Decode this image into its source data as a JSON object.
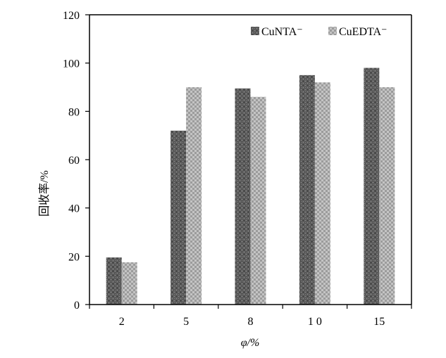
{
  "chart_data": {
    "type": "bar",
    "categories": [
      "2",
      "5",
      "8",
      "1 0",
      "15"
    ],
    "series": [
      {
        "name": "CuNTA⁻",
        "values": [
          19.5,
          72,
          89.5,
          95,
          98
        ],
        "color": "#555555",
        "pattern": "dark-checker"
      },
      {
        "name": "CuEDTA⁻",
        "values": [
          17.5,
          90,
          86,
          92,
          90
        ],
        "color": "#bdbdbd",
        "pattern": "light-checker"
      }
    ],
    "xlabel": "φ/%",
    "ylabel": "回收率/%",
    "ylim": [
      0,
      120
    ],
    "yticks": [
      "0",
      "20",
      "40",
      "60",
      "80",
      "100",
      "120"
    ],
    "grid": false,
    "legend_position": "top-right"
  }
}
